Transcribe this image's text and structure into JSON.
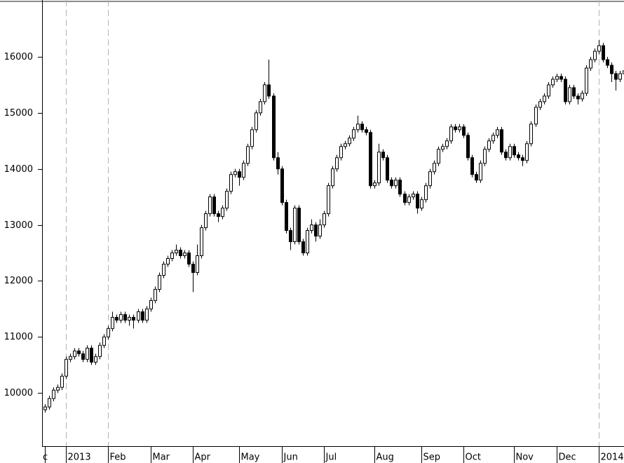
{
  "chart_data": {
    "type": "candlestick",
    "categories": [
      "c",
      null,
      null,
      null,
      null,
      "2013",
      null,
      null,
      null,
      null,
      null,
      null,
      null,
      null,
      null,
      "Feb",
      null,
      null,
      null,
      null,
      null,
      null,
      null,
      null,
      null,
      "Mar",
      null,
      null,
      null,
      null,
      null,
      null,
      null,
      null,
      null,
      "Apr",
      null,
      null,
      null,
      null,
      null,
      null,
      null,
      null,
      null,
      null,
      "May",
      null,
      null,
      null,
      null,
      null,
      null,
      null,
      null,
      null,
      "Jun",
      null,
      null,
      null,
      null,
      null,
      null,
      null,
      null,
      null,
      "Jul",
      null,
      null,
      null,
      null,
      null,
      null,
      null,
      null,
      null,
      null,
      null,
      "Aug",
      null,
      null,
      null,
      null,
      null,
      null,
      null,
      null,
      null,
      null,
      "Sep",
      null,
      null,
      null,
      null,
      null,
      null,
      null,
      null,
      null,
      "Oct",
      null,
      null,
      null,
      null,
      null,
      null,
      null,
      null,
      null,
      null,
      null,
      "Nov",
      null,
      null,
      null,
      null,
      null,
      null,
      null,
      null,
      null,
      "Dec",
      null,
      null,
      null,
      null,
      null,
      null,
      null,
      null,
      null,
      "2014",
      null,
      null,
      null,
      null,
      null,
      null
    ],
    "open": [
      9700,
      9750,
      9900,
      10050,
      10100,
      10300,
      10600,
      10650,
      10750,
      10700,
      10600,
      10800,
      10550,
      10650,
      10850,
      11000,
      11150,
      11350,
      11300,
      11400,
      11300,
      11350,
      11300,
      11450,
      11300,
      11500,
      11650,
      11850,
      12100,
      12300,
      12400,
      12500,
      12550,
      12450,
      12500,
      12300,
      12150,
      12450,
      12950,
      13200,
      13500,
      13200,
      13150,
      13300,
      13600,
      13900,
      13950,
      13850,
      14100,
      14400,
      14700,
      15000,
      15200,
      15500,
      15300,
      14200,
      14000,
      13400,
      12900,
      12700,
      13300,
      12700,
      12500,
      12900,
      13000,
      12800,
      13000,
      13200,
      13700,
      14000,
      14200,
      14400,
      14450,
      14550,
      14700,
      14800,
      14700,
      14650,
      13700,
      13750,
      14300,
      14200,
      13800,
      13700,
      13800,
      13550,
      13400,
      13500,
      13550,
      13300,
      13450,
      13700,
      13950,
      14100,
      14350,
      14400,
      14500,
      14750,
      14700,
      14750,
      14600,
      14200,
      13900,
      13800,
      14100,
      14350,
      14500,
      14600,
      14700,
      14300,
      14200,
      14400,
      14250,
      14200,
      14150,
      14450,
      14800,
      15100,
      15200,
      15300,
      15500,
      15600,
      15650,
      15600,
      15200,
      15450,
      15300,
      15250,
      15350,
      15800,
      15950,
      16100,
      16200,
      15950,
      15850,
      15700,
      15600,
      15700
    ],
    "high": [
      9800,
      9950,
      10100,
      10150,
      10350,
      10650,
      10700,
      10800,
      10800,
      10750,
      10850,
      10850,
      10700,
      10900,
      11050,
      11200,
      11450,
      11400,
      11450,
      11450,
      11400,
      11400,
      11500,
      11500,
      11550,
      11700,
      11900,
      12150,
      12350,
      12450,
      12550,
      12650,
      12600,
      12550,
      12550,
      12350,
      12650,
      13000,
      13250,
      13550,
      13550,
      13250,
      13350,
      13650,
      13950,
      14000,
      14000,
      14150,
      14450,
      14750,
      15050,
      15250,
      15550,
      15950,
      15350,
      14300,
      14050,
      13450,
      12950,
      13350,
      13350,
      12750,
      12950,
      13100,
      13050,
      13100,
      13250,
      13750,
      14050,
      14250,
      14450,
      14500,
      14600,
      14750,
      14950,
      14850,
      14750,
      14700,
      13800,
      14450,
      14350,
      14250,
      13850,
      13850,
      13850,
      13600,
      13550,
      13600,
      13600,
      13500,
      13750,
      14000,
      14150,
      14400,
      14450,
      14550,
      14800,
      14800,
      14800,
      14800,
      14650,
      14250,
      13950,
      14150,
      14400,
      14550,
      14650,
      14750,
      14750,
      14350,
      14450,
      14450,
      14300,
      14250,
      14500,
      14850,
      15150,
      15250,
      15350,
      15550,
      15650,
      15700,
      15700,
      15650,
      15500,
      15500,
      15350,
      15400,
      15850,
      16000,
      16150,
      16300,
      16250,
      16000,
      15900,
      15750,
      15750,
      15800
    ],
    "low": [
      9650,
      9700,
      9850,
      10000,
      10050,
      10250,
      10550,
      10600,
      10650,
      10550,
      10550,
      10500,
      10500,
      10600,
      10800,
      10950,
      11100,
      11250,
      11250,
      11250,
      11200,
      11150,
      11250,
      11250,
      11250,
      11450,
      11600,
      11800,
      12050,
      12250,
      12350,
      12450,
      12400,
      12400,
      12250,
      11800,
      12100,
      12400,
      12900,
      13150,
      13150,
      13050,
      13100,
      13250,
      13550,
      13850,
      13700,
      13800,
      14050,
      14350,
      14650,
      14950,
      15150,
      15250,
      14150,
      13900,
      13350,
      12850,
      12550,
      12650,
      12650,
      12450,
      12450,
      12850,
      12700,
      12750,
      12950,
      13150,
      13650,
      13950,
      14150,
      14350,
      14400,
      14500,
      14650,
      14650,
      14600,
      13650,
      13650,
      13700,
      14150,
      13750,
      13650,
      13650,
      13500,
      13350,
      13350,
      13450,
      13200,
      13250,
      13400,
      13650,
      13900,
      14050,
      14300,
      14350,
      14450,
      14650,
      14650,
      14550,
      14150,
      13850,
      13750,
      13750,
      14050,
      14300,
      14450,
      14550,
      14250,
      14150,
      14150,
      14200,
      14150,
      14050,
      14100,
      14400,
      14750,
      15050,
      15150,
      15250,
      15450,
      15550,
      15550,
      15150,
      15150,
      15250,
      15150,
      15200,
      15300,
      15750,
      15900,
      16050,
      15900,
      15800,
      15550,
      15400,
      15550,
      15650
    ],
    "close": [
      9750,
      9900,
      10050,
      10100,
      10300,
      10600,
      10650,
      10750,
      10700,
      10600,
      10800,
      10550,
      10650,
      10850,
      11000,
      11150,
      11350,
      11300,
      11400,
      11300,
      11350,
      11300,
      11450,
      11300,
      11500,
      11650,
      11850,
      12100,
      12300,
      12400,
      12500,
      12550,
      12450,
      12500,
      12300,
      12150,
      12450,
      12950,
      13200,
      13500,
      13200,
      13150,
      13300,
      13600,
      13900,
      13950,
      13850,
      14100,
      14400,
      14700,
      15000,
      15200,
      15500,
      15300,
      14200,
      14000,
      13400,
      12900,
      12700,
      13300,
      12700,
      12500,
      12900,
      13000,
      12800,
      13000,
      13200,
      13700,
      14000,
      14200,
      14400,
      14450,
      14550,
      14700,
      14800,
      14700,
      14650,
      13700,
      13750,
      14300,
      14200,
      13800,
      13700,
      13800,
      13550,
      13400,
      13500,
      13550,
      13300,
      13450,
      13700,
      13950,
      14100,
      14350,
      14400,
      14500,
      14750,
      14700,
      14750,
      14600,
      14200,
      13900,
      13800,
      14100,
      14350,
      14500,
      14600,
      14700,
      14300,
      14200,
      14400,
      14250,
      14200,
      14150,
      14450,
      14800,
      15100,
      15200,
      15300,
      15500,
      15600,
      15650,
      15600,
      15200,
      15450,
      15300,
      15250,
      15350,
      15800,
      15950,
      16100,
      16200,
      15950,
      15850,
      15700,
      15600,
      15700,
      15750
    ],
    "up_color": "#ffffff",
    "down_color": "#000000",
    "ylim": [
      9050,
      17015
    ],
    "yticks": [
      10000,
      11000,
      12000,
      13000,
      14000,
      15000,
      16000
    ],
    "dashed_gridlines": [
      "2013",
      "Feb",
      "2014"
    ]
  }
}
